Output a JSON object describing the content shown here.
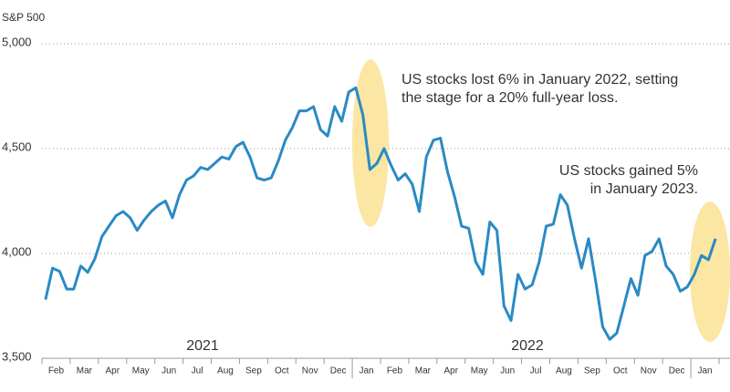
{
  "chart_data": {
    "type": "line",
    "y_label": "S&P 500",
    "categories": [
      null,
      "Feb",
      null,
      null,
      null,
      "Mar",
      null,
      null,
      null,
      "Apr",
      null,
      null,
      null,
      "May",
      null,
      null,
      null,
      "Jun",
      null,
      null,
      null,
      "Jul",
      null,
      null,
      null,
      "Aug",
      null,
      null,
      null,
      "Sep",
      null,
      null,
      null,
      "Oct",
      null,
      null,
      null,
      "Nov",
      null,
      null,
      null,
      "Dec",
      null,
      null,
      null,
      "Jan",
      null,
      null,
      null,
      "Feb",
      null,
      null,
      null,
      "Mar",
      null,
      null,
      null,
      "Apr",
      null,
      null,
      null,
      "May",
      null,
      null,
      null,
      "Jun",
      null,
      null,
      null,
      "Jul",
      null,
      null,
      null,
      "Aug",
      null,
      null,
      null,
      "Sep",
      null,
      null,
      null,
      "Oct",
      null,
      null,
      null,
      "Nov",
      null,
      null,
      null,
      "Dec",
      null,
      null,
      null,
      "Jan",
      null,
      null
    ],
    "series": [
      {
        "color": "#2a8ac4",
        "values": [
          3780,
          3930,
          3915,
          3830,
          3830,
          3940,
          3910,
          3975,
          4080,
          4130,
          4180,
          4200,
          4170,
          4110,
          4160,
          4200,
          4230,
          4250,
          4170,
          4280,
          4350,
          4370,
          4410,
          4400,
          4430,
          4460,
          4450,
          4510,
          4530,
          4460,
          4360,
          4350,
          4360,
          4440,
          4540,
          4600,
          4680,
          4680,
          4700,
          4590,
          4560,
          4700,
          4630,
          4770,
          4790,
          4660,
          4400,
          4430,
          4500,
          4420,
          4350,
          4380,
          4330,
          4200,
          4460,
          4540,
          4550,
          4390,
          4270,
          4130,
          4120,
          3960,
          3900,
          4150,
          4110,
          3750,
          3680,
          3900,
          3830,
          3850,
          3960,
          4130,
          4140,
          4280,
          4230,
          4070,
          3930,
          4070,
          3870,
          3650,
          3590,
          3620,
          3750,
          3880,
          3800,
          3990,
          4010,
          4070,
          3940,
          3900,
          3820,
          3840,
          3900,
          3990,
          3970,
          4070
        ]
      }
    ],
    "year_labels": [
      "2021",
      "2022"
    ],
    "annotations": [
      [
        "US stocks lost 6% in January 2022, setting",
        "the stage for a 20% full-year loss."
      ],
      [
        "US stocks gained 5%",
        "in January 2023."
      ]
    ],
    "ylim": [
      3500,
      5000
    ],
    "yticks": [
      {
        "value": 3500,
        "label": "3,500"
      },
      {
        "value": 4000,
        "label": "4,000"
      },
      {
        "value": 4500,
        "label": "4,500"
      },
      {
        "value": 5000,
        "label": "5,000"
      }
    ],
    "grid": true
  }
}
